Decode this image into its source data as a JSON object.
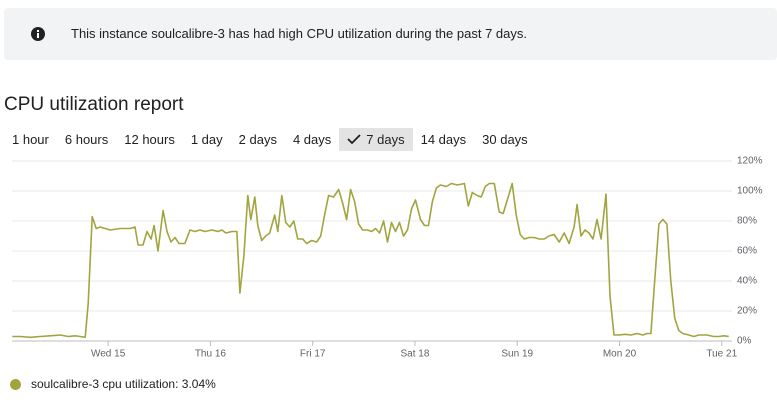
{
  "banner": {
    "text": "This instance soulcalibre-3 has had high CPU utilization during the past 7 days."
  },
  "report": {
    "title": "CPU utilization report",
    "ranges": [
      "1 hour",
      "6 hours",
      "12 hours",
      "1 day",
      "2 days",
      "4 days",
      "7 days",
      "14 days",
      "30 days"
    ],
    "selected_range": "7 days"
  },
  "chart_data": {
    "type": "line",
    "x": [
      14.063,
      14.141,
      14.239,
      14.337,
      14.434,
      14.532,
      14.61,
      14.678,
      14.727,
      14.776,
      14.805,
      14.844,
      14.883,
      14.922,
      14.971,
      15.02,
      15.117,
      15.215,
      15.263,
      15.293,
      15.341,
      15.38,
      15.42,
      15.449,
      15.488,
      15.537,
      15.576,
      15.615,
      15.654,
      15.693,
      15.751,
      15.8,
      15.849,
      15.898,
      15.946,
      16.015,
      16.073,
      16.112,
      16.151,
      16.21,
      16.259,
      16.288,
      16.327,
      16.366,
      16.395,
      16.434,
      16.463,
      16.502,
      16.541,
      16.58,
      16.629,
      16.659,
      16.698,
      16.737,
      16.776,
      16.815,
      16.854,
      16.902,
      16.941,
      16.99,
      17.039,
      17.078,
      17.117,
      17.156,
      17.205,
      17.254,
      17.293,
      17.332,
      17.371,
      17.41,
      17.449,
      17.488,
      17.537,
      17.576,
      17.615,
      17.654,
      17.693,
      17.732,
      17.771,
      17.81,
      17.849,
      17.888,
      17.927,
      17.966,
      18.005,
      18.054,
      18.093,
      18.132,
      18.171,
      18.21,
      18.249,
      18.307,
      18.356,
      18.415,
      18.483,
      18.522,
      18.561,
      18.61,
      18.649,
      18.688,
      18.727,
      18.776,
      18.824,
      18.863,
      18.912,
      18.951,
      18.99,
      19.029,
      19.068,
      19.117,
      19.166,
      19.215,
      19.263,
      19.312,
      19.361,
      19.41,
      19.459,
      19.507,
      19.556,
      19.585,
      19.624,
      19.663,
      19.702,
      19.741,
      19.78,
      19.82,
      19.868,
      19.907,
      19.946,
      19.995,
      20.054,
      20.112,
      20.171,
      20.229,
      20.268,
      20.307,
      20.346,
      20.385,
      20.424,
      20.463,
      20.502,
      20.541,
      20.58,
      20.62,
      20.678,
      20.727,
      20.776,
      20.854,
      20.922,
      20.971,
      21.02,
      21.068
    ],
    "series": [
      {
        "name": "soulcalibre-3 cpu utilization:",
        "color": "#a2a53f",
        "values": [
          3,
          3,
          2.5,
          3,
          3.5,
          4,
          3,
          3.5,
          3,
          2.5,
          25,
          83,
          75,
          76,
          75,
          74,
          75,
          75,
          76,
          64,
          64,
          73,
          68,
          77,
          60,
          87,
          73,
          66,
          69,
          65,
          65,
          74,
          73,
          74,
          73,
          74,
          73,
          74,
          72,
          73,
          73,
          32,
          57,
          97,
          81,
          96,
          77,
          67,
          70,
          72,
          84,
          73,
          97,
          79,
          76,
          80,
          68,
          68,
          65,
          67,
          66,
          70,
          84,
          97,
          96,
          101,
          92,
          81,
          101,
          93,
          78,
          74,
          74,
          73,
          75,
          72,
          80,
          66,
          79,
          73,
          79,
          70,
          74,
          88,
          94,
          81,
          77,
          77,
          93,
          102,
          104,
          103,
          105,
          104,
          105,
          90,
          99,
          97,
          96,
          103,
          105,
          105,
          86,
          85,
          96,
          105,
          84,
          71,
          68,
          69,
          69,
          68,
          68,
          70,
          71,
          66,
          72,
          65,
          76,
          91,
          70,
          74,
          72,
          68,
          81,
          68,
          98,
          30,
          4,
          4,
          4.5,
          4,
          5,
          4,
          5,
          5,
          42,
          78,
          81,
          78,
          40,
          15,
          7,
          5,
          4,
          3,
          4,
          4,
          3,
          3,
          3.5,
          3.04
        ]
      }
    ],
    "legend_value": 3.04,
    "legend_value_label": "3.04%",
    "xlim": [
      14.06,
      21.1
    ],
    "xticks": [
      {
        "value": 15,
        "label": "Wed 15"
      },
      {
        "value": 16,
        "label": "Thu 16"
      },
      {
        "value": 17,
        "label": "Fri 17"
      },
      {
        "value": 18,
        "label": "Sat 18"
      },
      {
        "value": 19,
        "label": "Sun 19"
      },
      {
        "value": 20,
        "label": "Mon 20"
      },
      {
        "value": 21,
        "label": "Tue 21"
      }
    ],
    "ylim": [
      0,
      120
    ],
    "yticks": [
      {
        "value": 0,
        "label": "0%"
      },
      {
        "value": 20,
        "label": "20%"
      },
      {
        "value": 40,
        "label": "40%"
      },
      {
        "value": 60,
        "label": "60%"
      },
      {
        "value": 80,
        "label": "80%"
      },
      {
        "value": 100,
        "label": "100%"
      },
      {
        "value": 120,
        "label": "120%"
      }
    ],
    "grid": true
  }
}
